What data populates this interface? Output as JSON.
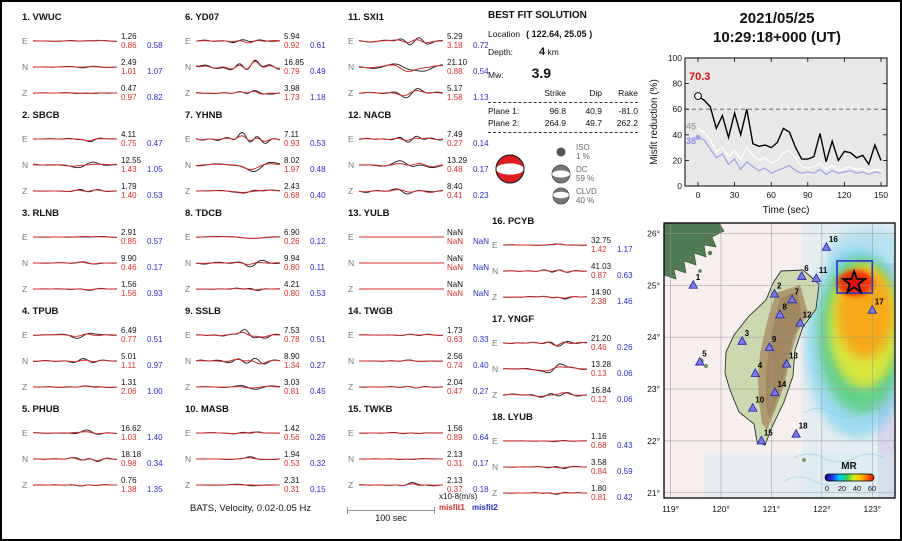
{
  "header": {
    "date": "2021/05/25",
    "time": "10:29:18+000  (UT)"
  },
  "best_fit": {
    "title": "BEST FIT SOLUTION",
    "location_label": "Location",
    "location_value": "( 122.64,  25.05 )",
    "depth_label": "Depth:",
    "depth_value": "4",
    "depth_unit": "km",
    "mw_label": "Mw:",
    "mw_value": "3.9",
    "cols": [
      "Strike",
      "Dip",
      "Rake"
    ],
    "planes": [
      {
        "label": "Plane 1:",
        "strike": "96.8",
        "dip": "40.9",
        "rake": "-81.0"
      },
      {
        "label": "Plane 2:",
        "strike": "264.9",
        "dip": "49.7",
        "rake": "262.2"
      }
    ],
    "decomp": [
      {
        "name": "ISO",
        "pct": "1 %"
      },
      {
        "name": "DC",
        "pct": "59 %"
      },
      {
        "name": "CLVD",
        "pct": "40 %"
      }
    ]
  },
  "stations": [
    {
      "num": "1.",
      "code": "VWUC",
      "channels": [
        {
          "ch": "E",
          "amp": "1.26",
          "m1": "0.86",
          "m2": "0.58",
          "w": 1.5
        },
        {
          "ch": "N",
          "amp": "2.49",
          "m1": "1.01",
          "m2": "1.07",
          "w": 1.5
        },
        {
          "ch": "Z",
          "amp": "0.47",
          "m1": "0.97",
          "m2": "0.82",
          "w": 1
        }
      ]
    },
    {
      "num": "2.",
      "code": "SBCB",
      "channels": [
        {
          "ch": "E",
          "amp": "4.11",
          "m1": "0.75",
          "m2": "0.47",
          "w": 2
        },
        {
          "ch": "N",
          "amp": "12.55",
          "m1": "1.43",
          "m2": "1.05",
          "w": 4
        },
        {
          "ch": "Z",
          "amp": "1.79",
          "m1": "1.40",
          "m2": "0.53",
          "w": 1.5
        }
      ]
    },
    {
      "num": "3.",
      "code": "RLNB",
      "channels": [
        {
          "ch": "E",
          "amp": "2.91",
          "m1": "0.85",
          "m2": "0.57",
          "w": 1
        },
        {
          "ch": "N",
          "amp": "9.90",
          "m1": "0.46",
          "m2": "0.17",
          "w": 1
        },
        {
          "ch": "Z",
          "amp": "1.56",
          "m1": "1.56",
          "m2": "0.93",
          "w": 1
        }
      ]
    },
    {
      "num": "4.",
      "code": "TPUB",
      "channels": [
        {
          "ch": "E",
          "amp": "6.49",
          "m1": "0.77",
          "m2": "0.51",
          "w": 3.5
        },
        {
          "ch": "N",
          "amp": "5.01",
          "m1": "1.11",
          "m2": "0.97",
          "w": 2.5
        },
        {
          "ch": "Z",
          "amp": "1.31",
          "m1": "2.06",
          "m2": "1.00",
          "w": 1.5
        }
      ]
    },
    {
      "num": "5.",
      "code": "PHUB",
      "channels": [
        {
          "ch": "E",
          "amp": "16.62",
          "m1": "1.03",
          "m2": "1.40",
          "w": 2.5
        },
        {
          "ch": "N",
          "amp": "18.18",
          "m1": "0.98",
          "m2": "0.34",
          "w": 3
        },
        {
          "ch": "Z",
          "amp": "0.76",
          "m1": "1.38",
          "m2": "1.35",
          "w": 1.5
        }
      ]
    },
    {
      "num": "6.",
      "code": "YD07",
      "channels": [
        {
          "ch": "E",
          "amp": "5.94",
          "m1": "0.92",
          "m2": "0.61",
          "w": 4
        },
        {
          "ch": "N",
          "amp": "16.85",
          "m1": "0.79",
          "m2": "0.49",
          "w": 8
        },
        {
          "ch": "Z",
          "amp": "3.98",
          "m1": "1.73",
          "m2": "1.18",
          "w": 3
        }
      ]
    },
    {
      "num": "7.",
      "code": "YHNB",
      "channels": [
        {
          "ch": "E",
          "amp": "7.11",
          "m1": "0.93",
          "m2": "0.53",
          "w": 4
        },
        {
          "ch": "N",
          "amp": "8.02",
          "m1": "1.97",
          "m2": "0.48",
          "w": 6
        },
        {
          "ch": "Z",
          "amp": "2.43",
          "m1": "0.68",
          "m2": "0.40",
          "w": 2.5
        }
      ]
    },
    {
      "num": "8.",
      "code": "TDCB",
      "channels": [
        {
          "ch": "E",
          "amp": "6.90",
          "m1": "0.26",
          "m2": "0.12",
          "w": 3.5
        },
        {
          "ch": "N",
          "amp": "9.94",
          "m1": "0.80",
          "m2": "0.11",
          "w": 7
        },
        {
          "ch": "Z",
          "amp": "4.21",
          "m1": "0.80",
          "m2": "0.53",
          "w": 2
        }
      ]
    },
    {
      "num": "9.",
      "code": "SSLB",
      "channels": [
        {
          "ch": "E",
          "amp": "7.53",
          "m1": "0.78",
          "m2": "0.51",
          "w": 3.5
        },
        {
          "ch": "N",
          "amp": "8.90",
          "m1": "1.34",
          "m2": "0.27",
          "w": 6
        },
        {
          "ch": "Z",
          "amp": "3.03",
          "m1": "0.81",
          "m2": "0.45",
          "w": 2
        }
      ]
    },
    {
      "num": "10.",
      "code": "MASB",
      "channels": [
        {
          "ch": "E",
          "amp": "1.42",
          "m1": "0.56",
          "m2": "0.26",
          "w": 1.5
        },
        {
          "ch": "N",
          "amp": "1.94",
          "m1": "0.53",
          "m2": "0.32",
          "w": 1.5
        },
        {
          "ch": "Z",
          "amp": "2.31",
          "m1": "0.31",
          "m2": "0.15",
          "w": 1.5
        }
      ]
    },
    {
      "num": "11.",
      "code": "SXI1",
      "channels": [
        {
          "ch": "E",
          "amp": "5.29",
          "m1": "3.18",
          "m2": "0.72",
          "w": 4.5
        },
        {
          "ch": "N",
          "amp": "21.10",
          "m1": "0.88",
          "m2": "0.54",
          "w": 8
        },
        {
          "ch": "Z",
          "amp": "5.17",
          "m1": "1.58",
          "m2": "1.13",
          "w": 4.5
        }
      ]
    },
    {
      "num": "12.",
      "code": "NACB",
      "channels": [
        {
          "ch": "E",
          "amp": "7.49",
          "m1": "0.27",
          "m2": "0.14",
          "w": 3
        },
        {
          "ch": "N",
          "amp": "13.29",
          "m1": "0.48",
          "m2": "0.17",
          "w": 6
        },
        {
          "ch": "Z",
          "amp": "8.40",
          "m1": "0.41",
          "m2": "0.23",
          "w": 4
        }
      ]
    },
    {
      "num": "13.",
      "code": "YULB",
      "channels": [
        {
          "ch": "E",
          "amp": "NaN",
          "m1": "NaN",
          "m2": "NaN",
          "w": 0
        },
        {
          "ch": "N",
          "amp": "NaN",
          "m1": "NaN",
          "m2": "NaN",
          "w": 0
        },
        {
          "ch": "Z",
          "amp": "NaN",
          "m1": "NaN",
          "m2": "NaN",
          "w": 0
        }
      ]
    },
    {
      "num": "14.",
      "code": "TWGB",
      "channels": [
        {
          "ch": "E",
          "amp": "1.73",
          "m1": "0.63",
          "m2": "0.33",
          "w": 1.5
        },
        {
          "ch": "N",
          "amp": "2.56",
          "m1": "0.74",
          "m2": "0.40",
          "w": 1.5
        },
        {
          "ch": "Z",
          "amp": "2.04",
          "m1": "0.47",
          "m2": "0.27",
          "w": 1.5
        }
      ]
    },
    {
      "num": "15.",
      "code": "TWKB",
      "channels": [
        {
          "ch": "E",
          "amp": "1.56",
          "m1": "0.89",
          "m2": "0.64",
          "w": 1
        },
        {
          "ch": "N",
          "amp": "2.13",
          "m1": "0.31",
          "m2": "0.17",
          "w": 1
        },
        {
          "ch": "Z",
          "amp": "2.13",
          "m1": "0.37",
          "m2": "0.18",
          "w": 1.5
        }
      ]
    },
    {
      "num": "16.",
      "code": "PCYB",
      "channels": [
        {
          "ch": "E",
          "amp": "32.75",
          "m1": "1.42",
          "m2": "1.17",
          "w": 1.5
        },
        {
          "ch": "N",
          "amp": "41.03",
          "m1": "0.87",
          "m2": "0.63",
          "w": 1.5
        },
        {
          "ch": "Z",
          "amp": "14.90",
          "m1": "2.38",
          "m2": "1.46",
          "w": 1.5
        }
      ]
    },
    {
      "num": "17.",
      "code": "YNGF",
      "channels": [
        {
          "ch": "E",
          "amp": "21.20",
          "m1": "0.46",
          "m2": "0.26",
          "w": 4.5
        },
        {
          "ch": "N",
          "amp": "13.28",
          "m1": "0.13",
          "m2": "0.06",
          "w": 4.5
        },
        {
          "ch": "Z",
          "amp": "16.84",
          "m1": "0.12",
          "m2": "0.06",
          "w": 4.5
        }
      ]
    },
    {
      "num": "18.",
      "code": "LYUB",
      "channels": [
        {
          "ch": "E",
          "amp": "1.16",
          "m1": "0.68",
          "m2": "0.43",
          "w": 1
        },
        {
          "ch": "N",
          "amp": "3.58",
          "m1": "0.84",
          "m2": "0.59",
          "w": 1.5
        },
        {
          "ch": "Z",
          "amp": "1.80",
          "m1": "0.81",
          "m2": "0.42",
          "w": 1
        }
      ]
    }
  ],
  "footer": {
    "caption": "BATS, Velocity, 0.02-0.05 Hz",
    "scale_label": "100 sec",
    "unit_label": "x10-8(m/s)",
    "misfit1_label": "misfit1",
    "misfit2_label": "misfit2"
  },
  "chart_data": [
    {
      "type": "line",
      "title": "Misfit reduction vs time",
      "xlabel": "Time (sec)",
      "ylabel": "Misfit reduction (%)",
      "xlim": [
        0,
        150
      ],
      "ylim": [
        0,
        100
      ],
      "xticks": [
        0,
        30,
        60,
        90,
        120,
        150
      ],
      "yticks": [
        0,
        20,
        40,
        60,
        80,
        100
      ],
      "dashed_line_y": 60,
      "x": [
        0,
        5,
        10,
        15,
        20,
        25,
        30,
        35,
        40,
        45,
        50,
        55,
        60,
        65,
        70,
        75,
        80,
        85,
        90,
        95,
        100,
        105,
        110,
        115,
        120,
        125,
        130,
        135,
        140,
        145,
        150
      ],
      "series": [
        {
          "name": "best",
          "color": "#000000",
          "values": [
            70.3,
            67,
            62,
            45,
            55,
            38,
            57,
            40,
            60,
            33,
            31,
            32,
            30,
            34,
            45,
            42,
            30,
            21,
            21,
            23,
            41,
            19,
            35,
            20,
            27,
            26,
            22,
            24,
            17,
            32,
            20
          ]
        },
        {
          "name": "mid",
          "color": "#ffffff",
          "values": [
            45,
            42,
            36,
            27,
            30,
            23,
            28,
            21,
            30,
            24,
            20,
            22,
            18,
            20,
            26,
            28,
            22,
            15,
            14,
            15,
            18,
            13,
            16,
            12,
            14,
            15,
            13,
            14,
            11,
            13,
            12
          ]
        },
        {
          "name": "low",
          "color": "#a0a2e8",
          "values": [
            38,
            36,
            29,
            22,
            25,
            17,
            21,
            13,
            19,
            15,
            12,
            14,
            10,
            12,
            14,
            16,
            12,
            10,
            11,
            10,
            13,
            9,
            12,
            10,
            11,
            12,
            10,
            11,
            9,
            11,
            10
          ]
        }
      ],
      "annotations": {
        "start_label": "70.3",
        "mid_label": "45",
        "low_label": "38"
      }
    },
    {
      "type": "map",
      "lon_range": [
        118.87,
        123.45
      ],
      "lat_range": [
        20.9,
        26.2
      ],
      "lon_ticks": [
        119,
        120,
        121,
        122,
        123
      ],
      "lon_labels": [
        "119°",
        "120°",
        "121°",
        "122°",
        "123°"
      ],
      "lat_ticks": [
        26,
        25,
        24,
        23,
        22,
        21
      ],
      "lat_labels": [
        "26°",
        "25°",
        "24°",
        "23°",
        "22°",
        "21°"
      ],
      "epicenter": {
        "lon": 122.64,
        "lat": 25.05
      },
      "box": {
        "lon_min": 122.3,
        "lon_max": 123.0,
        "lat_min": 24.85,
        "lat_max": 25.47
      },
      "colorbar": {
        "label": "MR",
        "ticks": [
          "0",
          "20",
          "40",
          "60"
        ]
      },
      "stations": [
        {
          "n": "1",
          "lon": 119.45,
          "lat": 25.0
        },
        {
          "n": "2",
          "lon": 121.06,
          "lat": 24.83
        },
        {
          "n": "3",
          "lon": 120.42,
          "lat": 23.92
        },
        {
          "n": "4",
          "lon": 120.68,
          "lat": 23.3
        },
        {
          "n": "5",
          "lon": 119.58,
          "lat": 23.52
        },
        {
          "n": "6",
          "lon": 121.6,
          "lat": 25.17
        },
        {
          "n": "7",
          "lon": 121.41,
          "lat": 24.72
        },
        {
          "n": "8",
          "lon": 121.17,
          "lat": 24.43
        },
        {
          "n": "9",
          "lon": 120.96,
          "lat": 23.8
        },
        {
          "n": "10",
          "lon": 120.63,
          "lat": 22.63
        },
        {
          "n": "11",
          "lon": 121.89,
          "lat": 25.13
        },
        {
          "n": "12",
          "lon": 121.57,
          "lat": 24.27
        },
        {
          "n": "13",
          "lon": 121.3,
          "lat": 23.48
        },
        {
          "n": "14",
          "lon": 121.07,
          "lat": 22.93
        },
        {
          "n": "15",
          "lon": 120.8,
          "lat": 22.0
        },
        {
          "n": "16",
          "lon": 122.09,
          "lat": 25.73
        },
        {
          "n": "17",
          "lon": 123.0,
          "lat": 24.52
        },
        {
          "n": "18",
          "lon": 121.49,
          "lat": 22.13
        }
      ]
    }
  ]
}
